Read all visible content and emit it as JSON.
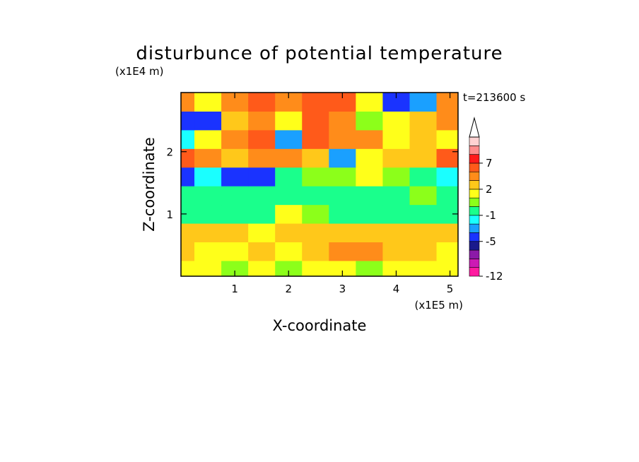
{
  "chart_data": {
    "type": "heatmap",
    "title": "disturbunce of potential temperature",
    "xlabel": "X-coordinate",
    "ylabel": "Z-coordinate",
    "x_unit": "(x1E5 m)",
    "y_unit": "(x1E4 m)",
    "time_label": "t=213600 s",
    "xlim": [
      0,
      5.15
    ],
    "ylim": [
      0,
      2.95
    ],
    "x_ticks": [
      1,
      2,
      3,
      4,
      5
    ],
    "y_ticks": [
      1,
      2
    ],
    "colorbar": {
      "levels": [
        -12,
        -11,
        -9,
        -7,
        -5,
        -4,
        -2,
        -1,
        0,
        1,
        2,
        3,
        5,
        7,
        9,
        11
      ],
      "colors": [
        "#ff1aa0",
        "#cc1ab4",
        "#8c1aa8",
        "#1a1a8c",
        "#1a33ff",
        "#1aa0ff",
        "#1affff",
        "#1aff8c",
        "#8cff1a",
        "#ffff1a",
        "#ffc81a",
        "#ff8c1a",
        "#ff5a1a",
        "#ff1a1a",
        "#ff8c8c",
        "#ffd2d2"
      ],
      "tick_labels": [
        "-12",
        "-5",
        "-1",
        "2",
        "7"
      ],
      "tick_values": [
        -12,
        -5,
        -1,
        2,
        7
      ],
      "extend": "max"
    },
    "z_grid": {
      "x": [
        0.0,
        0.5,
        1.0,
        1.5,
        2.0,
        2.5,
        3.0,
        3.5,
        4.0,
        4.5,
        5.0
      ],
      "z": [
        0.1,
        0.4,
        0.7,
        1.0,
        1.3,
        1.6,
        1.9,
        2.2,
        2.5,
        2.8
      ],
      "values": [
        [
          1,
          1,
          0,
          1,
          0,
          1,
          1,
          0,
          1,
          1,
          1
        ],
        [
          2,
          1,
          1,
          2,
          1,
          2,
          3,
          3,
          2,
          2,
          1
        ],
        [
          2,
          2,
          2,
          1,
          2,
          2,
          2,
          2,
          2,
          2,
          2
        ],
        [
          -1,
          -1,
          -1,
          -1,
          1,
          0,
          -1,
          -1,
          -1,
          -1,
          -1
        ],
        [
          -1,
          -1,
          -1,
          -1,
          -1,
          -1,
          -1,
          -1,
          -1,
          0,
          -1
        ],
        [
          -5,
          -2,
          -5,
          -5,
          -1,
          0,
          0,
          1,
          0,
          -1,
          -2
        ],
        [
          5,
          3,
          2,
          3,
          3,
          2,
          -4,
          1,
          2,
          2,
          5
        ],
        [
          -2,
          1,
          3,
          5,
          -4,
          5,
          3,
          3,
          1,
          2,
          1
        ],
        [
          -5,
          -5,
          2,
          3,
          1,
          5,
          3,
          0,
          1,
          2,
          3
        ],
        [
          3,
          1,
          3,
          5,
          3,
          5,
          5,
          1,
          -5,
          -4,
          3
        ]
      ]
    }
  }
}
